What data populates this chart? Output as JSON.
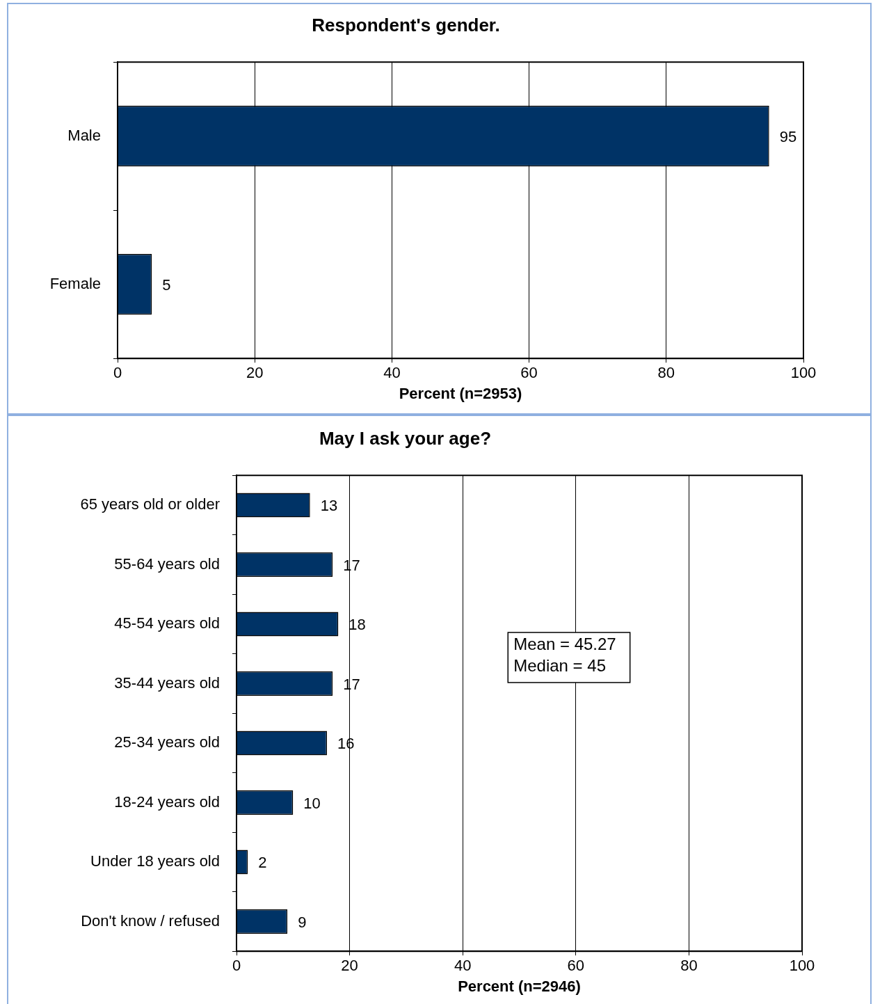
{
  "chart_data": [
    {
      "type": "bar",
      "orientation": "horizontal",
      "title": "Respondent's gender.",
      "xlabel": "Percent (n=2953)",
      "categories": [
        "Male",
        "Female"
      ],
      "values": [
        95,
        5
      ],
      "color": "#003366",
      "xlim": [
        0,
        100
      ],
      "xticks": [
        0,
        20,
        40,
        60,
        80,
        100
      ],
      "grid": "x",
      "data_labels": true
    },
    {
      "type": "bar",
      "orientation": "horizontal",
      "title": "May I ask your age?",
      "xlabel": "Percent (n=2946)",
      "categories": [
        "65 years old or older",
        "55-64 years old",
        "45-54 years old",
        "35-44 years old",
        "25-34 years old",
        "18-24 years old",
        "Under 18 years old",
        "Don't know / refused"
      ],
      "values": [
        13,
        17,
        18,
        17,
        16,
        10,
        2,
        9
      ],
      "color": "#003366",
      "xlim": [
        0,
        100
      ],
      "xticks": [
        0,
        20,
        40,
        60,
        80,
        100
      ],
      "grid": "x",
      "data_labels": true,
      "annotations": [
        "Mean = 45.27",
        "Median = 45"
      ]
    }
  ]
}
